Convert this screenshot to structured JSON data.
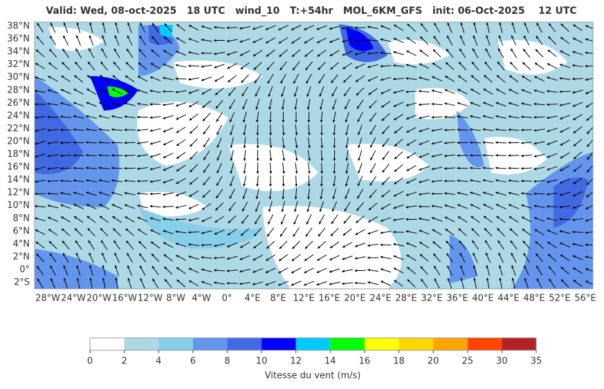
{
  "title": "Valid: Wed, 08-oct-2025   18 UTC   wind_10   T:+54hr   MOL_6KM_GFS   init: 06-Oct-2025    12 UTC",
  "map": {
    "lat_labels": [
      "38°N",
      "36°N",
      "34°N",
      "32°N",
      "30°N",
      "28°N",
      "26°N",
      "24°N",
      "22°N",
      "20°N",
      "18°N",
      "16°N",
      "14°N",
      "12°N",
      "10°N",
      "8°N",
      "6°N",
      "4°N",
      "2°N",
      "0°",
      "2°S"
    ],
    "lon_labels": [
      "28°W",
      "24°W",
      "20°W",
      "16°W",
      "12°W",
      "8°W",
      "4°W",
      "0°",
      "4°E",
      "8°E",
      "12°E",
      "16°E",
      "20°E",
      "24°E",
      "28°E",
      "32°E",
      "36°E",
      "40°E",
      "44°E",
      "48°E",
      "52°E",
      "56°E"
    ]
  },
  "colorbar": {
    "label": "Vitesse du vent (m/s)",
    "ticks": [
      0,
      2,
      4,
      6,
      8,
      10,
      12,
      14,
      16,
      18,
      20,
      25,
      30,
      35
    ],
    "colors": [
      "#ffffff",
      "#add8e6",
      "#87ceeb",
      "#6495ed",
      "#4169e1",
      "#0000ff",
      "#00ccff",
      "#00ff00",
      "#ffff00",
      "#ffd700",
      "#ffa500",
      "#ff4500",
      "#b22222"
    ]
  }
}
